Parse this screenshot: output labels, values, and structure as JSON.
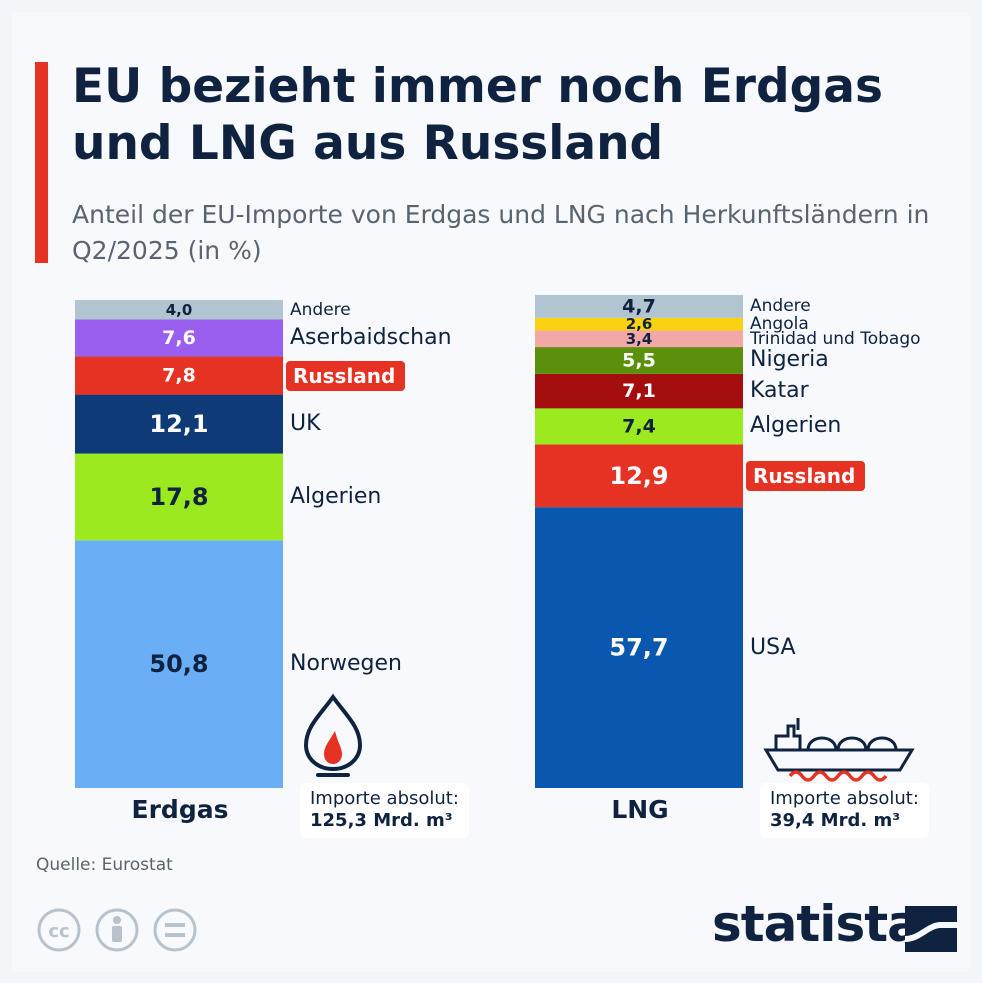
{
  "header": {
    "title": "EU bezieht immer noch Erdgas und LNG aus Russland",
    "subtitle": "Anteil der EU-Importe von Erdgas und LNG nach Herkunftsländern in Q2/2025 (in %)"
  },
  "colors": {
    "accent": "#e63223",
    "navy": "#0f2340"
  },
  "chart_data": [
    {
      "type": "bar",
      "stacked": true,
      "category": "Erdgas",
      "unit": "%",
      "segments": [
        {
          "name": "Norwegen",
          "value": 50.8,
          "label": "50,8",
          "color": "#6aaff5",
          "text_color": "#0f2340"
        },
        {
          "name": "Algerien",
          "value": 17.8,
          "label": "17,8",
          "color": "#9be91f",
          "text_color": "#0f2340"
        },
        {
          "name": "UK",
          "value": 12.1,
          "label": "12,1",
          "color": "#0e3a78",
          "text_color": "#ffffff"
        },
        {
          "name": "Russland",
          "value": 7.8,
          "label": "7,8",
          "color": "#e63223",
          "text_color": "#ffffff",
          "highlight": true
        },
        {
          "name": "Aserbaidschan",
          "value": 7.6,
          "label": "7,6",
          "color": "#9b5ff0",
          "text_color": "#ffffff"
        },
        {
          "name": "Andere",
          "value": 4.0,
          "label": "4,0",
          "color": "#b1c5d1",
          "text_color": "#0f2340"
        }
      ],
      "info": {
        "label": "Importe absolut:",
        "value": "125,3 Mrd. m³"
      },
      "icon": "gas-flame-icon"
    },
    {
      "type": "bar",
      "stacked": true,
      "category": "LNG",
      "unit": "%",
      "segments": [
        {
          "name": "USA",
          "value": 57.7,
          "label": "57,7",
          "color": "#0a57b0",
          "text_color": "#ffffff"
        },
        {
          "name": "Russland",
          "value": 12.9,
          "label": "12,9",
          "color": "#e63223",
          "text_color": "#ffffff",
          "highlight": true
        },
        {
          "name": "Algerien",
          "value": 7.4,
          "label": "7,4",
          "color": "#9be91f",
          "text_color": "#0f2340"
        },
        {
          "name": "Katar",
          "value": 7.1,
          "label": "7,1",
          "color": "#a50e0e",
          "text_color": "#ffffff"
        },
        {
          "name": "Nigeria",
          "value": 5.5,
          "label": "5,5",
          "color": "#5c8f0c",
          "text_color": "#ffffff"
        },
        {
          "name": "Trinidad und Tobago",
          "value": 3.4,
          "label": "3,4",
          "color": "#f4a7a7",
          "text_color": "#0f2340"
        },
        {
          "name": "Angola",
          "value": 2.6,
          "label": "2,6",
          "color": "#f8d210",
          "text_color": "#0f2340"
        },
        {
          "name": "Andere",
          "value": 4.7,
          "label": "4,7",
          "color": "#b1c5d1",
          "text_color": "#0f2340"
        }
      ],
      "info": {
        "label": "Importe absolut:",
        "value": "39,4 Mrd. m³"
      },
      "icon": "lng-tanker-icon"
    }
  ],
  "footer": {
    "source": "Quelle: Eurostat",
    "logo": "statista",
    "license_icons": [
      "cc-icon",
      "attribution-icon",
      "no-derivatives-icon"
    ]
  }
}
